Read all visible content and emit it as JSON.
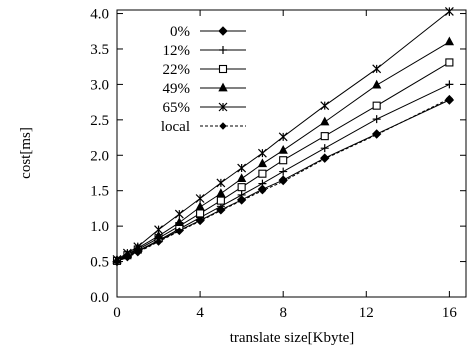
{
  "chart_data": {
    "type": "line",
    "title": "",
    "xlabel": "translate size[Kbyte]",
    "ylabel": "cost[ms]",
    "xlim": [
      0,
      16.8
    ],
    "ylim": [
      0,
      4.05
    ],
    "xticks": [
      0,
      4,
      8,
      12,
      16
    ],
    "xtick_labels": [
      "0",
      "4",
      "8",
      "12",
      "16"
    ],
    "yticks": [
      0.0,
      0.5,
      1.0,
      1.5,
      2.0,
      2.5,
      3.0,
      3.5,
      4.0
    ],
    "ytick_labels": [
      "0.0",
      "0.5",
      "1.0",
      "1.5",
      "2.0",
      "2.5",
      "3.0",
      "3.5",
      "4.0"
    ],
    "grid": false,
    "legend_position": "top-left",
    "x": [
      0,
      0.5,
      1,
      2,
      3,
      4,
      5,
      6,
      7,
      8,
      10,
      12.5,
      16
    ],
    "series": [
      {
        "name": "0%",
        "marker": "filled-diamond",
        "dashed": false,
        "values": [
          0.5,
          0.57,
          0.64,
          0.79,
          0.94,
          1.08,
          1.23,
          1.37,
          1.52,
          1.65,
          1.96,
          2.3,
          2.78
        ]
      },
      {
        "name": "12%",
        "marker": "plus",
        "dashed": false,
        "values": [
          0.5,
          0.58,
          0.65,
          0.8,
          0.96,
          1.12,
          1.28,
          1.44,
          1.6,
          1.77,
          2.1,
          2.51,
          3.0
        ]
      },
      {
        "name": "22%",
        "marker": "open-square",
        "dashed": false,
        "values": [
          0.51,
          0.59,
          0.67,
          0.83,
          1.0,
          1.18,
          1.36,
          1.55,
          1.74,
          1.93,
          2.27,
          2.7,
          3.31
        ]
      },
      {
        "name": "49%",
        "marker": "filled-triangle",
        "dashed": false,
        "values": [
          0.52,
          0.6,
          0.69,
          0.86,
          1.05,
          1.27,
          1.46,
          1.67,
          1.88,
          2.07,
          2.47,
          2.99,
          3.6
        ]
      },
      {
        "name": "65%",
        "marker": "asterisk",
        "dashed": false,
        "values": [
          0.53,
          0.62,
          0.71,
          0.95,
          1.17,
          1.39,
          1.61,
          1.82,
          2.03,
          2.26,
          2.7,
          3.22,
          4.03
        ]
      },
      {
        "name": "local",
        "marker": "small-diamond",
        "dashed": true,
        "values": [
          0.5,
          0.56,
          0.63,
          0.78,
          0.93,
          1.07,
          1.22,
          1.36,
          1.5,
          1.63,
          1.95,
          2.29,
          2.8
        ]
      }
    ]
  }
}
